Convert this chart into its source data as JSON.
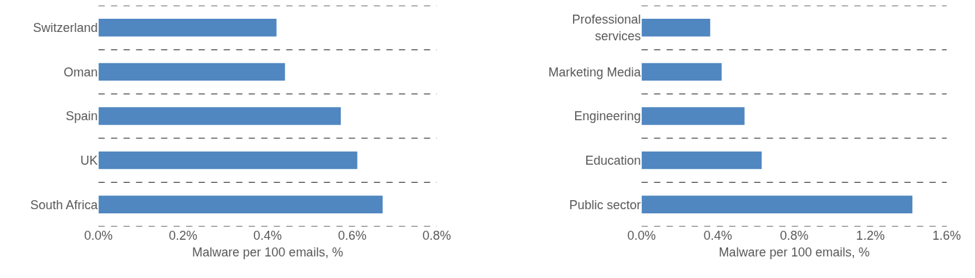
{
  "chart_data": [
    {
      "type": "bar",
      "orientation": "horizontal",
      "categories": [
        "Switzerland",
        "Oman",
        "Spain",
        "UK",
        "South Africa"
      ],
      "values": [
        0.421,
        0.441,
        0.573,
        0.612,
        0.672
      ],
      "color": "#5087c1",
      "xlabel": "Malware per 100 emails, %",
      "xlim": [
        0,
        0.8
      ],
      "xticks": [
        {
          "value": 0,
          "label": "0.0%"
        },
        {
          "value": 0.2,
          "label": "0.2%"
        },
        {
          "value": 0.4,
          "label": "0.4%"
        },
        {
          "value": 0.6,
          "label": "0.6%"
        },
        {
          "value": 0.8,
          "label": "0.8%"
        }
      ],
      "grid": "y"
    },
    {
      "type": "bar",
      "orientation": "horizontal",
      "categories": [
        "Professional\nservices",
        "Marketing Media",
        "Engineering",
        "Education",
        "Public sector"
      ],
      "values": [
        0.36,
        0.42,
        0.54,
        0.63,
        1.42
      ],
      "color": "#5087c1",
      "xlabel": "Malware per 100 emails, %",
      "xlim": [
        0,
        1.6
      ],
      "xticks": [
        {
          "value": 0,
          "label": "0.0%"
        },
        {
          "value": 0.4,
          "label": "0.4%"
        },
        {
          "value": 0.8,
          "label": "0.8%"
        },
        {
          "value": 1.2,
          "label": "1.2%"
        },
        {
          "value": 1.6,
          "label": "1.6%"
        }
      ],
      "grid": "y"
    }
  ]
}
